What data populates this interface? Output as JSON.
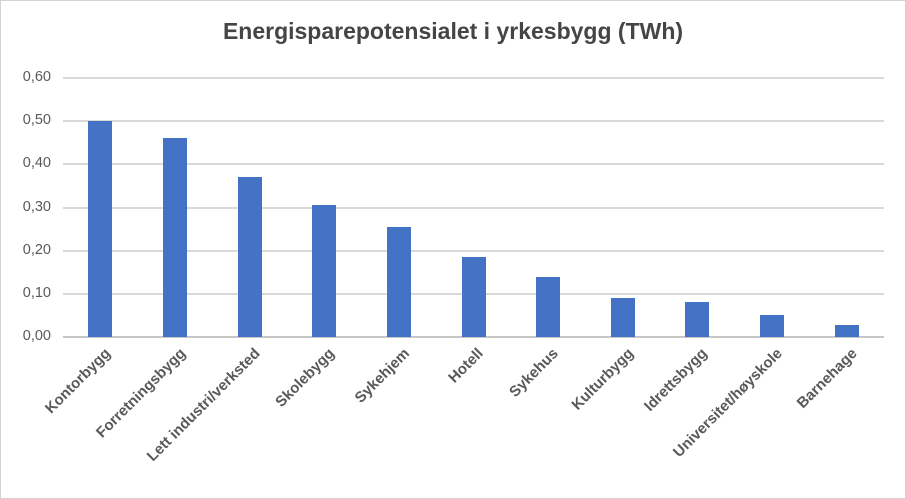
{
  "chart": {
    "title": "Energisparepotensialet i yrkesbygg (TWh)",
    "colors": {
      "bar": "#4472C4",
      "gridline": "#D9D9D9",
      "axis_line": "#C6C6C6",
      "title_text": "#454545",
      "label_text": "#595959",
      "background": "#FFFFFF"
    }
  },
  "chart_data": {
    "type": "bar",
    "title": "Energisparepotensialet i yrkesbygg (TWh)",
    "categories": [
      "Kontorbygg",
      "Forretningsbygg",
      "Lett industri/verksted",
      "Skolebygg",
      "Sykehjem",
      "Hotell",
      "Sykehus",
      "Kulturbygg",
      "Idrettsbygg",
      "Universitet/høyskole",
      "Barnehage"
    ],
    "values": [
      0.5,
      0.46,
      0.37,
      0.305,
      0.255,
      0.185,
      0.14,
      0.09,
      0.08,
      0.05,
      0.027
    ],
    "xlabel": "",
    "ylabel": "",
    "ylim": [
      0,
      0.6
    ],
    "ytick_interval": 0.1,
    "ytick_labels": [
      "0,00",
      "0,10",
      "0,20",
      "0,30",
      "0,40",
      "0,50",
      "0,60"
    ],
    "grid": true,
    "legend": false,
    "bar_color": "#4472C4"
  }
}
